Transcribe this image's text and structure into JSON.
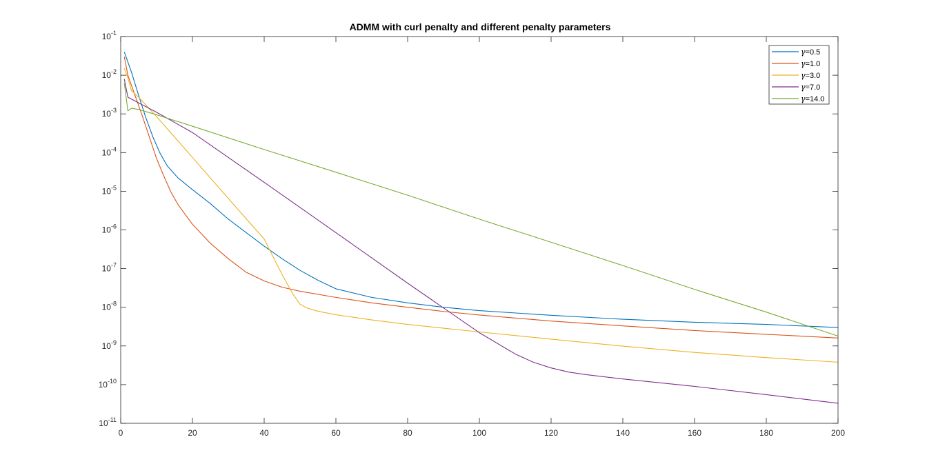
{
  "chart_data": {
    "type": "line",
    "title": "ADMM with curl penalty and different penalty parameters",
    "xlabel": "",
    "ylabel": "",
    "xlim": [
      0,
      200
    ],
    "ylim": [
      1e-11,
      0.1
    ],
    "yscale": "log",
    "xticks": [
      0,
      20,
      40,
      60,
      80,
      100,
      120,
      140,
      160,
      180,
      200
    ],
    "yticks": [
      {
        "base": "10",
        "exp": "-1"
      },
      {
        "base": "10",
        "exp": "-2"
      },
      {
        "base": "10",
        "exp": "-3"
      },
      {
        "base": "10",
        "exp": "-4"
      },
      {
        "base": "10",
        "exp": "-5"
      },
      {
        "base": "10",
        "exp": "-6"
      },
      {
        "base": "10",
        "exp": "-7"
      },
      {
        "base": "10",
        "exp": "-8"
      },
      {
        "base": "10",
        "exp": "-9"
      },
      {
        "base": "10",
        "exp": "-10"
      },
      {
        "base": "10",
        "exp": "-11"
      }
    ],
    "grid": false,
    "legend_position": "top-right",
    "series": [
      {
        "name": "γ=0.5",
        "legend_symbol": "γ",
        "legend_value": "=0.5",
        "color": "#0072BD",
        "x": [
          1,
          3,
          5,
          7,
          9,
          11,
          13,
          16,
          20,
          25,
          30,
          35,
          40,
          45,
          50,
          55,
          60,
          70,
          80,
          90,
          100,
          120,
          140,
          160,
          180,
          200
        ],
        "y": [
          0.04,
          0.012,
          0.003,
          0.0008,
          0.00025,
          9.5e-05,
          4.5e-05,
          2.2e-05,
          1.1e-05,
          4.8e-06,
          1.9e-06,
          8.5e-07,
          3.8e-07,
          1.8e-07,
          9e-08,
          5e-08,
          3e-08,
          1.8e-08,
          1.3e-08,
          1e-08,
          8.2e-09,
          6.2e-09,
          4.9e-09,
          4.1e-09,
          3.6e-09,
          3e-09
        ]
      },
      {
        "name": "γ=1.0",
        "legend_symbol": "γ",
        "legend_value": "=1.0",
        "color": "#D95319",
        "x": [
          1,
          2,
          4,
          6,
          8,
          10,
          12,
          14,
          16,
          18,
          20,
          25,
          30,
          35,
          40,
          45,
          50,
          60,
          70,
          80,
          90,
          100,
          120,
          140,
          160,
          180,
          200
        ],
        "y": [
          0.03,
          0.01,
          0.003,
          0.0009,
          0.00025,
          7e-05,
          2.5e-05,
          9.5e-06,
          4.5e-06,
          2.5e-06,
          1.4e-06,
          4.5e-07,
          1.8e-07,
          8e-08,
          4.8e-08,
          3.3e-08,
          2.6e-08,
          1.8e-08,
          1.3e-08,
          1e-08,
          7.8e-09,
          6.3e-09,
          4.4e-09,
          3.3e-09,
          2.5e-09,
          2e-09,
          1.6e-09
        ]
      },
      {
        "name": "γ=3.0",
        "legend_symbol": "γ",
        "legend_value": "=3.0",
        "color": "#EDB120",
        "x": [
          1,
          2,
          3,
          5,
          10,
          20,
          30,
          40,
          45,
          48,
          50,
          52,
          55,
          60,
          70,
          80,
          100,
          120,
          140,
          160,
          180,
          200
        ],
        "y": [
          0.015,
          0.0085,
          0.004,
          0.0027,
          0.00085,
          7.5e-05,
          6.5e-06,
          5.8e-07,
          7e-08,
          2.2e-08,
          1.2e-08,
          9.5e-09,
          7.9e-09,
          6.4e-09,
          4.7e-09,
          3.6e-09,
          2.3e-09,
          1.5e-09,
          9.9e-10,
          6.8e-10,
          5e-10,
          3.8e-10
        ]
      },
      {
        "name": "γ=7.0",
        "legend_symbol": "γ",
        "legend_value": "=7.0",
        "color": "#7E2F8E",
        "x": [
          1,
          2,
          10,
          20,
          40,
          60,
          80,
          100,
          110,
          115,
          120,
          125,
          130,
          140,
          160,
          180,
          200
        ],
        "y": [
          0.008,
          0.0027,
          0.0011,
          0.00033,
          1.7e-05,
          8.5e-07,
          4.2e-08,
          2.2e-09,
          6.2e-10,
          3.8e-10,
          2.7e-10,
          2.1e-10,
          1.8e-10,
          1.4e-10,
          9e-11,
          5.5e-11,
          3.3e-11
        ]
      },
      {
        "name": "γ=14.0",
        "legend_symbol": "γ",
        "legend_value": "=14.0",
        "color": "#77AC30",
        "x": [
          1,
          2,
          3,
          5,
          10,
          20,
          40,
          60,
          80,
          100,
          120,
          140,
          160,
          180,
          200
        ],
        "y": [
          0.0063,
          0.0012,
          0.0014,
          0.0013,
          0.00095,
          0.00048,
          0.00012,
          3.1e-05,
          7.9e-06,
          1.9e-06,
          4.8e-07,
          1.2e-07,
          2.9e-08,
          7.5e-09,
          1.8e-09
        ]
      }
    ]
  }
}
